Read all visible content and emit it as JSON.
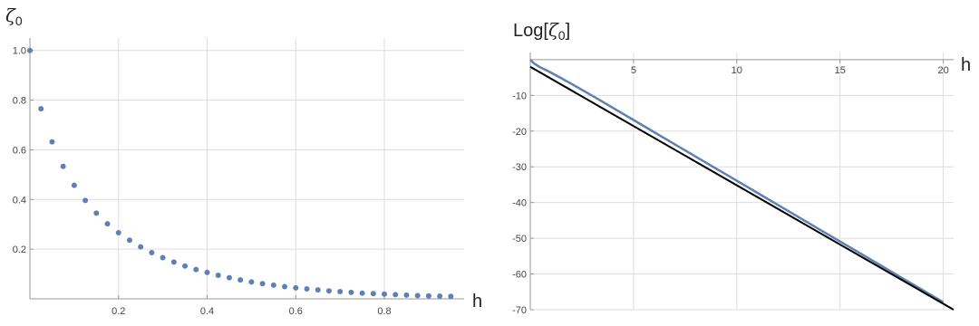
{
  "colors": {
    "series": "#5e81b5",
    "fit": "#000000",
    "grid": "#dddddd",
    "axis": "#999999"
  },
  "chart_data": [
    {
      "type": "scatter",
      "ylabel": "ζ0",
      "xlabel": "h",
      "xlim": [
        0,
        0.98
      ],
      "ylim": [
        0,
        1.05
      ],
      "grid": true,
      "x_ticks": [
        0.2,
        0.4,
        0.6,
        0.8
      ],
      "x_tick_labels": [
        "0.2",
        "0.4",
        "0.6",
        "0.8"
      ],
      "y_ticks": [
        0.2,
        0.4,
        0.6,
        0.8,
        1.0
      ],
      "y_tick_labels": [
        "0.2",
        "0.4",
        "0.6",
        "0.8",
        "1.0"
      ],
      "series": [
        {
          "x": [
            0,
            0.025,
            0.05,
            0.075,
            0.1,
            0.125,
            0.15,
            0.175,
            0.2,
            0.225,
            0.25,
            0.275,
            0.3,
            0.325,
            0.35,
            0.375,
            0.4,
            0.425,
            0.45,
            0.475,
            0.5,
            0.525,
            0.55,
            0.575,
            0.6,
            0.625,
            0.65,
            0.675,
            0.7,
            0.725,
            0.75,
            0.775,
            0.8,
            0.825,
            0.85,
            0.875,
            0.9,
            0.925,
            0.95
          ],
          "y": [
            1.0,
            0.765,
            0.632,
            0.533,
            0.457,
            0.396,
            0.345,
            0.302,
            0.266,
            0.236,
            0.209,
            0.186,
            0.166,
            0.148,
            0.132,
            0.118,
            0.106,
            0.095,
            0.085,
            0.076,
            0.068,
            0.061,
            0.055,
            0.049,
            0.044,
            0.04,
            0.036,
            0.032,
            0.029,
            0.026,
            0.023,
            0.021,
            0.019,
            0.017,
            0.015,
            0.013,
            0.012,
            0.011,
            0.01
          ]
        }
      ]
    },
    {
      "type": "line",
      "ylabel": "Log[ζ0]",
      "xlabel": "h",
      "xlim": [
        0,
        20.5
      ],
      "ylim": [
        -70,
        2
      ],
      "grid": true,
      "x_ticks": [
        5,
        10,
        15,
        20
      ],
      "x_tick_labels": [
        "5",
        "10",
        "15",
        "20"
      ],
      "y_ticks": [
        -10,
        -20,
        -30,
        -40,
        -50,
        -60,
        -70
      ],
      "y_tick_labels": [
        "-10",
        "-20",
        "-30",
        "-40",
        "-50",
        "-60",
        "-70"
      ],
      "series": [
        {
          "x": [
            0,
            0.15,
            0.3,
            0.5,
            0.75,
            1.0,
            1.5,
            2,
            3,
            4,
            5,
            6,
            7,
            8,
            9,
            10,
            11,
            12,
            13,
            14,
            15,
            16,
            17,
            18,
            19,
            20
          ],
          "y": [
            0.0,
            -0.9,
            -1.5,
            -2.2,
            -2.9,
            -3.6,
            -5.2,
            -6.8,
            -10.1,
            -13.5,
            -16.9,
            -20.3,
            -23.7,
            -27.1,
            -30.5,
            -33.9,
            -37.3,
            -40.7,
            -44.1,
            -47.5,
            -50.9,
            -54.3,
            -57.7,
            -61.1,
            -64.5,
            -67.9
          ]
        },
        {
          "x": [
            0,
            20.5
          ],
          "y": [
            -2.0,
            -70.0
          ]
        }
      ]
    }
  ]
}
